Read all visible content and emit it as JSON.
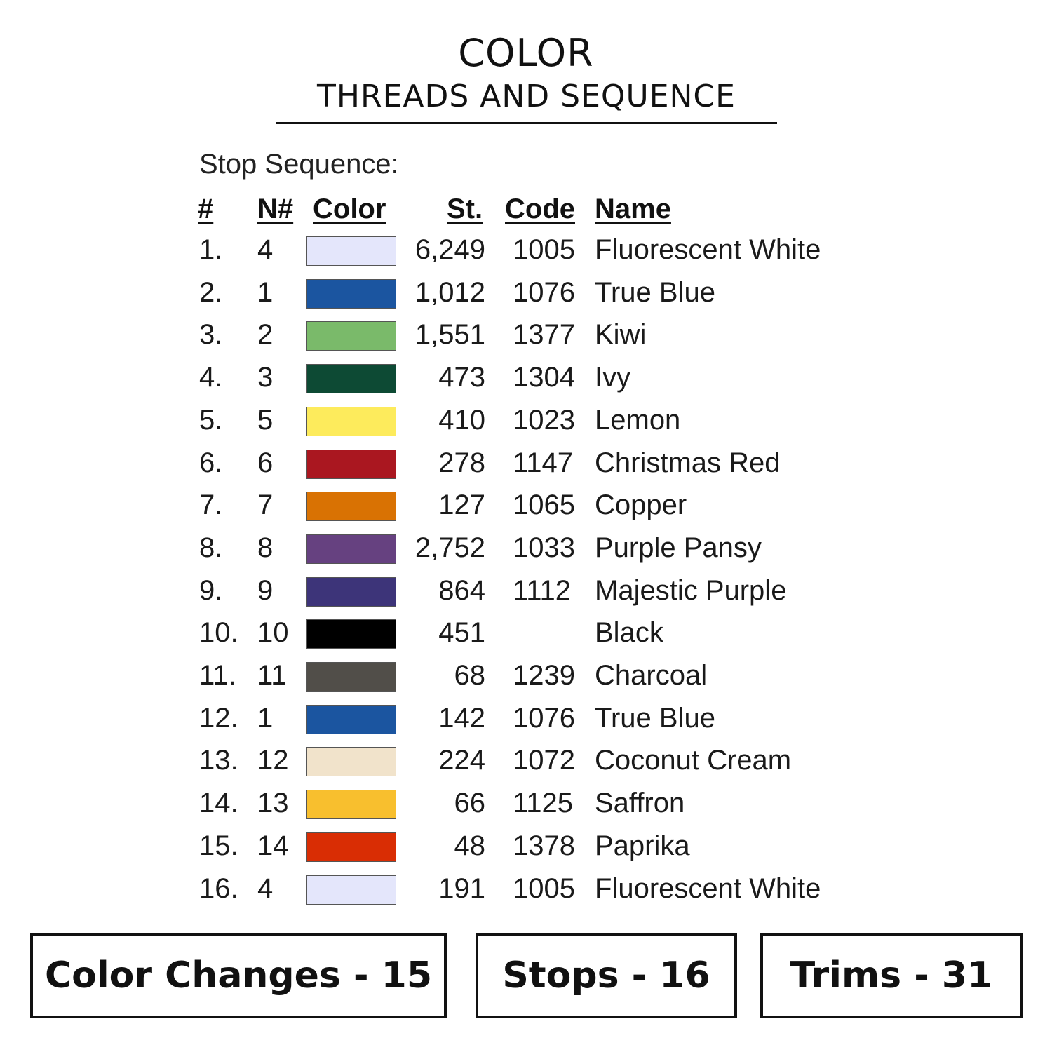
{
  "title": "COLOR",
  "subtitle": "THREADS AND SEQUENCE",
  "section_label": "Stop Sequence:",
  "headers": {
    "num": "#",
    "n": "N#",
    "color": "Color",
    "st": "St.",
    "code": "Code",
    "name": "Name"
  },
  "rows": [
    {
      "num": "1.",
      "n": "4",
      "color": "#e4e6fb",
      "st": "6,249",
      "code": "1005",
      "name": "Fluorescent White"
    },
    {
      "num": "2.",
      "n": "1",
      "color": "#1b55a0",
      "st": "1,012",
      "code": "1076",
      "name": "True Blue"
    },
    {
      "num": "3.",
      "n": "2",
      "color": "#7aba6a",
      "st": "1,551",
      "code": "1377",
      "name": "Kiwi"
    },
    {
      "num": "4.",
      "n": "3",
      "color": "#0d4a34",
      "st": "473",
      "code": "1304",
      "name": "Ivy"
    },
    {
      "num": "5.",
      "n": "5",
      "color": "#fdeb5c",
      "st": "410",
      "code": "1023",
      "name": "Lemon"
    },
    {
      "num": "6.",
      "n": "6",
      "color": "#aa1720",
      "st": "278",
      "code": "1147",
      "name": "Christmas Red"
    },
    {
      "num": "7.",
      "n": "7",
      "color": "#d97203",
      "st": "127",
      "code": "1065",
      "name": "Copper"
    },
    {
      "num": "8.",
      "n": "8",
      "color": "#664180",
      "st": "2,752",
      "code": "1033",
      "name": "Purple Pansy"
    },
    {
      "num": "9.",
      "n": "9",
      "color": "#3d3479",
      "st": "864",
      "code": "1112",
      "name": "Majestic Purple"
    },
    {
      "num": "10.",
      "n": "10",
      "color": "#000000",
      "st": "451",
      "code": "",
      "name": "Black"
    },
    {
      "num": "11.",
      "n": "11",
      "color": "#514e49",
      "st": "68",
      "code": "1239",
      "name": "Charcoal"
    },
    {
      "num": "12.",
      "n": "1",
      "color": "#1b55a0",
      "st": "142",
      "code": "1076",
      "name": "True Blue"
    },
    {
      "num": "13.",
      "n": "12",
      "color": "#f1e3cb",
      "st": "224",
      "code": "1072",
      "name": "Coconut Cream"
    },
    {
      "num": "14.",
      "n": "13",
      "color": "#f8bf2e",
      "st": "66",
      "code": "1125",
      "name": "Saffron"
    },
    {
      "num": "15.",
      "n": "14",
      "color": "#d92d04",
      "st": "48",
      "code": "1378",
      "name": "Paprika"
    },
    {
      "num": "16.",
      "n": "4",
      "color": "#e4e6fb",
      "st": "191",
      "code": "1005",
      "name": "Fluorescent White"
    }
  ],
  "summary": {
    "color_changes": "Color Changes - 15",
    "stops": "Stops - 16",
    "trims": "Trims - 31"
  }
}
